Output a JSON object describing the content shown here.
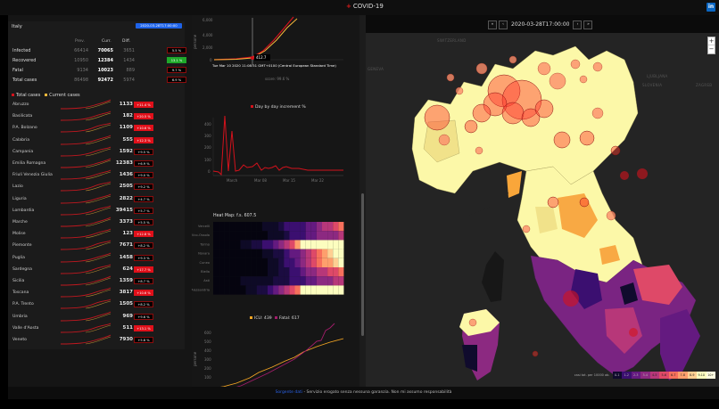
{
  "header": {
    "title": "COVID-19",
    "cross_icon": "red-cross",
    "linkedin_label": "in"
  },
  "summary": {
    "country": "Italy",
    "date": "2020-03-28T17:00:00",
    "columns": {
      "prev": "Prev.",
      "curr": "Curr.",
      "diff": "Diff."
    },
    "rows": [
      {
        "label": "Infected",
        "prev": "66414",
        "curr": "70065",
        "diff": "3651",
        "pct": "5.5 %",
        "style": "normal"
      },
      {
        "label": "Recovered",
        "prev": "10950",
        "curr": "12384",
        "diff": "1434",
        "pct": "13.1 %",
        "style": "green"
      },
      {
        "label": "Fatal",
        "prev": "9134",
        "curr": "10023",
        "diff": "889",
        "pct": "9.7 %",
        "style": "normal"
      },
      {
        "label": "Total cases",
        "prev": "86498",
        "curr": "92472",
        "diff": "5974",
        "pct": "6.9 %",
        "style": "normal"
      }
    ],
    "legend": {
      "total": "Total cases",
      "current": "Current cases",
      "total_color": "#d3121c",
      "current_color": "#f5b73b"
    }
  },
  "regions": [
    {
      "name": "Abruzzo",
      "value": "1133",
      "pct": "+11.4 %",
      "hot": true
    },
    {
      "name": "Basilicata",
      "value": "182",
      "pct": "+20.5 %",
      "hot": true
    },
    {
      "name": "P.A. Bolzano",
      "value": "1109",
      "pct": "+10.6 %",
      "hot": true
    },
    {
      "name": "Calabria",
      "value": "555",
      "pct": "+12.3 %",
      "hot": true
    },
    {
      "name": "Campania",
      "value": "1592",
      "pct": "+9.5 %",
      "hot": false
    },
    {
      "name": "Emilia Romagna",
      "value": "12383",
      "pct": "+6.9 %",
      "hot": false
    },
    {
      "name": "Friuli Venezia Giulia",
      "value": "1436",
      "pct": "+9.0 %",
      "hot": false
    },
    {
      "name": "Lazio",
      "value": "2505",
      "pct": "+9.2 %",
      "hot": false
    },
    {
      "name": "Liguria",
      "value": "2822",
      "pct": "+4.7 %",
      "hot": false
    },
    {
      "name": "Lombardia",
      "value": "39415",
      "pct": "+5.7 %",
      "hot": false
    },
    {
      "name": "Marche",
      "value": "3373",
      "pct": "+5.5 %",
      "hot": false
    },
    {
      "name": "Molise",
      "value": "123",
      "pct": "+12.8 %",
      "hot": true
    },
    {
      "name": "Piemonte",
      "value": "7671",
      "pct": "+8.2 %",
      "hot": false
    },
    {
      "name": "Puglia",
      "value": "1458",
      "pct": "+9.3 %",
      "hot": false
    },
    {
      "name": "Sardegna",
      "value": "624",
      "pct": "+17.7 %",
      "hot": true
    },
    {
      "name": "Sicilia",
      "value": "1359",
      "pct": "+8.7 %",
      "hot": false
    },
    {
      "name": "Toscana",
      "value": "3817",
      "pct": "+10.6 %",
      "hot": true
    },
    {
      "name": "P.A. Trento",
      "value": "1505",
      "pct": "+8.2 %",
      "hot": false
    },
    {
      "name": "Umbria",
      "value": "969",
      "pct": "+9.6 %",
      "hot": false
    },
    {
      "name": "Valle d'Aosta",
      "value": "511",
      "pct": "+13.1 %",
      "hot": true
    },
    {
      "name": "Veneto",
      "value": "7930",
      "pct": "+5.8 %",
      "hot": false
    }
  ],
  "charts": {
    "trend": {
      "ylabel": "persone",
      "yticks": [
        "6,000",
        "4,000",
        "2,000",
        "0"
      ],
      "tooltip_value": "412.7",
      "tooltip_date": "Tue Mar 10 2020 11:08:51 GMT+0100 (Central European Standard Time)",
      "score": "score: 99.6 %"
    },
    "increment": {
      "legend": "Day by day increment %",
      "yticks": [
        "400",
        "300",
        "200",
        "100",
        "0"
      ],
      "xticks": [
        "March",
        "Mar 08",
        "Mar 15",
        "Mar 22"
      ]
    },
    "heatmap": {
      "title": "Heat Map: f.s. 607.5",
      "rows": [
        "Vercelli",
        "Vco-Ossola",
        "Torino",
        "Novara",
        "Cuneo",
        "Biella",
        "Asti",
        "Alessandria"
      ]
    },
    "icu": {
      "legend_icu": "ICU: 439",
      "legend_fatal": "Fatal: 617",
      "ylabel": "persone",
      "yticks": [
        "600",
        "500",
        "400",
        "300",
        "200",
        "100"
      ],
      "icu_color": "#f5a623",
      "fatal_color": "#a31d6b"
    }
  },
  "map": {
    "timestamp": "2020-03-28T17:00:00",
    "nav": {
      "first": "«",
      "prev": "‹",
      "next": "›",
      "last": "»"
    },
    "zoom_in": "+",
    "zoom_out": "−",
    "labels": [
      "LIECHTENSTEIN",
      "SWITZERLAND",
      "BERN",
      "GENEVA",
      "SLOVENIA",
      "LJUBLJANA",
      "ZAGREB"
    ],
    "legend_title": "casi tot. per 10000 ab.",
    "legend_bins": [
      "0-1",
      "1-2",
      "2-3",
      "3-4",
      "4-5",
      "5-6",
      "6-7",
      "7-8",
      "8-9",
      "9-10",
      "10+"
    ],
    "legend_colors": [
      "#100b2d",
      "#3b0f70",
      "#641a80",
      "#8c2981",
      "#b73779",
      "#de4968",
      "#f7705c",
      "#fe9f6d",
      "#fecf92",
      "#fcfdbf",
      "#fffde0"
    ]
  },
  "footer": {
    "source_link": "Sorgente dati",
    "disclaimer": " - Servizio erogato senza nessuna garanzia. Non mi assumo responsabilità"
  }
}
